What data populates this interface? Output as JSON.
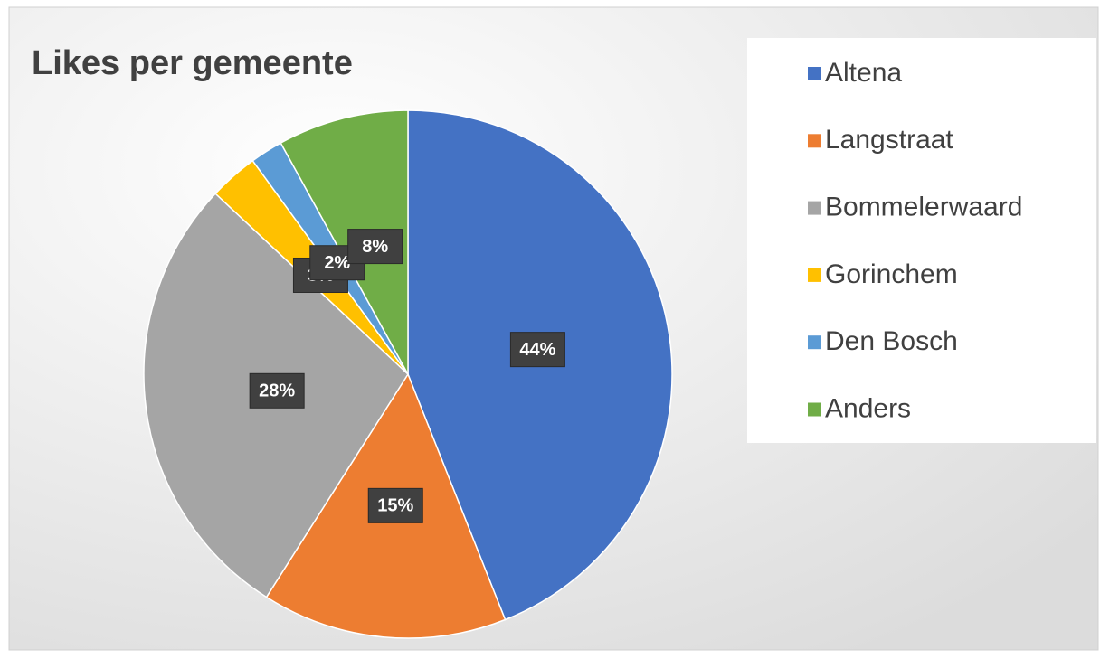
{
  "chart_data": {
    "type": "pie",
    "title": "Likes per gemeente",
    "categories": [
      "Altena",
      "Langstraat",
      "Bommelerwaard",
      "Gorinchem",
      "Den Bosch",
      "Anders"
    ],
    "values": [
      44,
      15,
      28,
      3,
      2,
      8
    ],
    "value_labels": [
      "44%",
      "15%",
      "28%",
      "3%",
      "2%",
      "8%"
    ],
    "colors": [
      "#4472c4",
      "#ed7d31",
      "#a5a5a5",
      "#ffc000",
      "#5b9bd5",
      "#70ad47"
    ],
    "legend": "right"
  }
}
